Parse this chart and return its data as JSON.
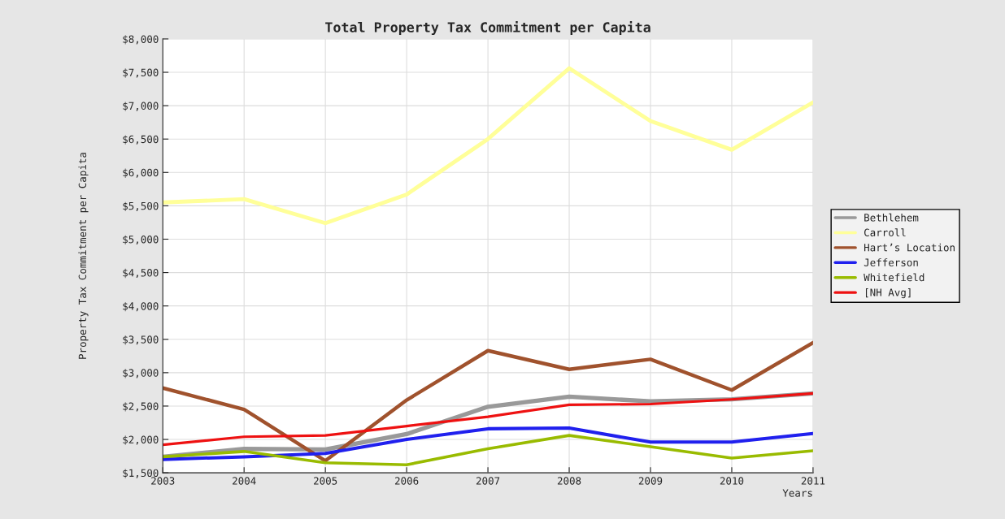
{
  "chart_data": {
    "type": "line",
    "title": "Total Property Tax Commitment per Capita",
    "xlabel": "Years",
    "ylabel": "Property Tax Commitment per Capita",
    "x": [
      2003,
      2004,
      2005,
      2006,
      2007,
      2008,
      2009,
      2010,
      2011
    ],
    "series": [
      {
        "name": "Bethlehem",
        "color": "#999999",
        "values": [
          1740,
          1860,
          1850,
          2080,
          2490,
          2640,
          2570,
          2600,
          2690
        ]
      },
      {
        "name": "Carroll",
        "color": "#ffff99",
        "values": [
          5550,
          5600,
          5240,
          5670,
          6500,
          7560,
          6770,
          6340,
          7050
        ]
      },
      {
        "name": "Hart’s Location",
        "color": "#a0522d",
        "values": [
          2770,
          2450,
          1680,
          2590,
          3330,
          3050,
          3200,
          2740,
          3450
        ]
      },
      {
        "name": "Jefferson",
        "color": "#2020ee",
        "values": [
          1700,
          1740,
          1790,
          2000,
          2160,
          2170,
          1960,
          1960,
          2090
        ]
      },
      {
        "name": "Whitefield",
        "color": "#99bb00",
        "values": [
          1740,
          1820,
          1650,
          1620,
          1860,
          2060,
          1890,
          1720,
          1830
        ]
      },
      {
        "name": "[NH Avg]",
        "color": "#ee1111",
        "values": [
          1920,
          2040,
          2060,
          2200,
          2340,
          2520,
          2530,
          2600,
          2690
        ]
      }
    ],
    "xlim": [
      2003,
      2011
    ],
    "xticks": [
      2003,
      2004,
      2005,
      2006,
      2007,
      2008,
      2009,
      2010,
      2011
    ],
    "ylim": [
      1500,
      8000
    ],
    "yticks": [
      {
        "value": 1500,
        "label": "$1,500"
      },
      {
        "value": 2000,
        "label": "$2,000"
      },
      {
        "value": 2500,
        "label": "$2,500"
      },
      {
        "value": 3000,
        "label": "$3,000"
      },
      {
        "value": 3500,
        "label": "$3,500"
      },
      {
        "value": 4000,
        "label": "$4,000"
      },
      {
        "value": 4500,
        "label": "$4,500"
      },
      {
        "value": 5000,
        "label": "$5,000"
      },
      {
        "value": 5500,
        "label": "$5,500"
      },
      {
        "value": 6000,
        "label": "$6,000"
      },
      {
        "value": 6500,
        "label": "$6,500"
      },
      {
        "value": 7000,
        "label": "$7,000"
      },
      {
        "value": 7500,
        "label": "$7,500"
      },
      {
        "value": 8000,
        "label": "$8,000"
      }
    ],
    "grid": true,
    "legend": "right",
    "marker": "none",
    "line_style": "solid"
  }
}
